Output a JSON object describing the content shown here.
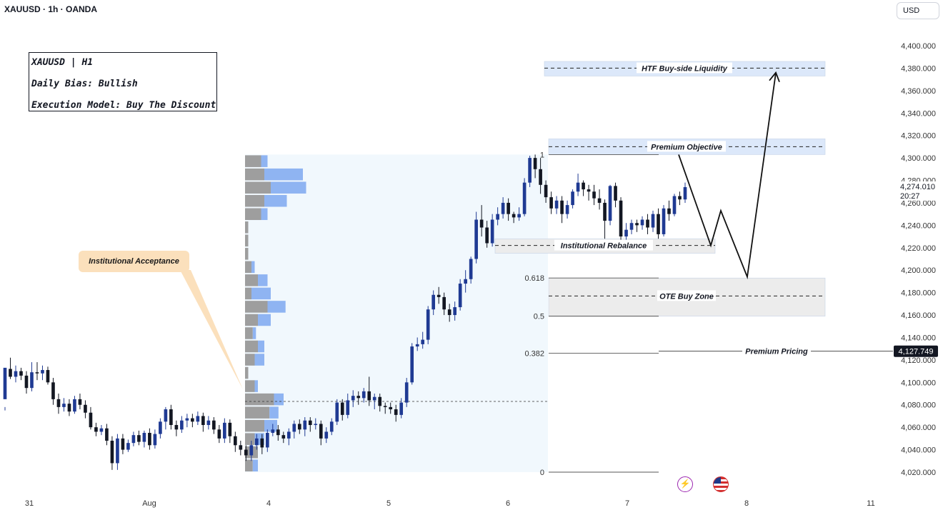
{
  "header": {
    "symbol_line": "XAUUSD · 1h · OANDA",
    "currency": "USD"
  },
  "info_box": {
    "line1": "XAUUSD | H1",
    "line2": "Daily Bias: Bullish",
    "line3": "Execution Model: Buy The Discount"
  },
  "callout": {
    "label": "Institutional Acceptance"
  },
  "events": {
    "icon1": "lightning-icon",
    "icon2": "us-flag-icon"
  },
  "colors": {
    "bull": "#1f3a93",
    "bear": "#131722",
    "zone_blue": "#dce8fa",
    "zone_gray": "#ececec",
    "profile_light": "#f1f8fd",
    "vol_gray": "#9e9e9e",
    "vol_blue": "#8fb4f2",
    "callout": "#fbe0bc"
  },
  "chart_data": {
    "type": "candlestick",
    "title": "XAUUSD · 1h · OANDA",
    "y_axis": {
      "ticks": [
        "4,020.000",
        "4,040.000",
        "4,060.000",
        "4,080.000",
        "4,100.000",
        "4,120.000",
        "4,140.000",
        "4,160.000",
        "4,180.000",
        "4,200.000",
        "4,220.000",
        "4,240.000",
        "4,260.000",
        "4,280.000",
        "4,300.000",
        "4,320.000",
        "4,340.000",
        "4,360.000",
        "4,380.000",
        "4,400.000"
      ],
      "ylim": [
        4020,
        4400
      ],
      "current_price": "4,274.010",
      "countdown": "20:27",
      "premium_pricing_price": "4,127.749"
    },
    "x_axis": {
      "labels": [
        "31",
        "Aug",
        "4",
        "5",
        "6",
        "7",
        "8",
        "11"
      ]
    },
    "candles": [
      [
        4085,
        4113,
        4078,
        4075,
        4115
      ],
      [
        4112,
        4105,
        4103,
        4122
      ],
      [
        4105,
        4110,
        4100,
        4115
      ],
      [
        4110,
        4106,
        4102,
        4113
      ],
      [
        4106,
        4095,
        4090,
        4110
      ],
      [
        4095,
        4109,
        4092,
        4118
      ],
      [
        4109,
        4108,
        4102,
        4118
      ],
      [
        4108,
        4111,
        4102,
        4115
      ],
      [
        4111,
        4100,
        4098,
        4114
      ],
      [
        4100,
        4085,
        4080,
        4104
      ],
      [
        4085,
        4078,
        4072,
        4090
      ],
      [
        4078,
        4081,
        4074,
        4086
      ],
      [
        4081,
        4074,
        4070,
        4085
      ],
      [
        4074,
        4085,
        4072,
        4088
      ],
      [
        4085,
        4080,
        4076,
        4090
      ],
      [
        4080,
        4073,
        4068,
        4084
      ],
      [
        4073,
        4060,
        4058,
        4078
      ],
      [
        4060,
        4056,
        4052,
        4064
      ],
      [
        4056,
        4059,
        4053,
        4062
      ],
      [
        4059,
        4048,
        4044,
        4063
      ],
      [
        4048,
        4028,
        4022,
        4052
      ],
      [
        4028,
        4050,
        4022,
        4054
      ],
      [
        4050,
        4040,
        4036,
        4054
      ],
      [
        4040,
        4046,
        4038,
        4049
      ],
      [
        4046,
        4053,
        4043,
        4056
      ],
      [
        4053,
        4047,
        4044,
        4057
      ],
      [
        4047,
        4055,
        4042,
        4057
      ],
      [
        4055,
        4044,
        4040,
        4059
      ],
      [
        4044,
        4054,
        4041,
        4058
      ],
      [
        4054,
        4065,
        4050,
        4068
      ],
      [
        4065,
        4076,
        4058,
        4078
      ],
      [
        4076,
        4062,
        4058,
        4080
      ],
      [
        4062,
        4058,
        4052,
        4066
      ],
      [
        4058,
        4066,
        4055,
        4070
      ],
      [
        4066,
        4068,
        4060,
        4072
      ],
      [
        4068,
        4065,
        4060,
        4072
      ],
      [
        4065,
        4070,
        4062,
        4074
      ],
      [
        4070,
        4062,
        4056,
        4073
      ],
      [
        4062,
        4066,
        4058,
        4070
      ],
      [
        4066,
        4058,
        4054,
        4069
      ],
      [
        4058,
        4050,
        4046,
        4062
      ],
      [
        4050,
        4064,
        4046,
        4068
      ],
      [
        4064,
        4052,
        4046,
        4067
      ],
      [
        4052,
        4044,
        4038,
        4056
      ],
      [
        4044,
        4040,
        4035,
        4048
      ],
      [
        4040,
        4035,
        4030,
        4044
      ],
      [
        4035,
        4044,
        4030,
        4048
      ],
      [
        4044,
        4050,
        4040,
        4054
      ],
      [
        4050,
        4042,
        4036,
        4054
      ],
      [
        4042,
        4055,
        4038,
        4058
      ],
      [
        4055,
        4058,
        4052,
        4063
      ],
      [
        4058,
        4053,
        4048,
        4062
      ],
      [
        4053,
        4050,
        4046,
        4056
      ],
      [
        4050,
        4056,
        4044,
        4059
      ],
      [
        4056,
        4063,
        4050,
        4066
      ],
      [
        4063,
        4058,
        4054,
        4067
      ],
      [
        4058,
        4066,
        4052,
        4069
      ],
      [
        4066,
        4062,
        4056,
        4069
      ],
      [
        4062,
        4063,
        4058,
        4068
      ],
      [
        4063,
        4050,
        4044,
        4066
      ],
      [
        4050,
        4056,
        4046,
        4060
      ],
      [
        4056,
        4065,
        4053,
        4068
      ],
      [
        4065,
        4082,
        4062,
        4085
      ],
      [
        4082,
        4071,
        4066,
        4085
      ],
      [
        4071,
        4084,
        4068,
        4090
      ],
      [
        4084,
        4088,
        4078,
        4093
      ],
      [
        4088,
        4086,
        4080,
        4092
      ],
      [
        4086,
        4092,
        4082,
        4095
      ],
      [
        4092,
        4084,
        4079,
        4105
      ],
      [
        4084,
        4087,
        4076,
        4090
      ],
      [
        4087,
        4079,
        4074,
        4090
      ],
      [
        4079,
        4078,
        4072,
        4082
      ],
      [
        4078,
        4076,
        4072,
        4082
      ],
      [
        4076,
        4071,
        4065,
        4080
      ],
      [
        4071,
        4082,
        4068,
        4086
      ],
      [
        4082,
        4100,
        4078,
        4104
      ],
      [
        4100,
        4132,
        4098,
        4135
      ],
      [
        4132,
        4134,
        4128,
        4140
      ],
      [
        4134,
        4138,
        4130,
        4145
      ],
      [
        4138,
        4165,
        4134,
        4168
      ],
      [
        4165,
        4178,
        4160,
        4182
      ],
      [
        4178,
        4176,
        4170,
        4185
      ],
      [
        4176,
        4165,
        4160,
        4180
      ],
      [
        4165,
        4160,
        4154,
        4170
      ],
      [
        4160,
        4167,
        4155,
        4172
      ],
      [
        4167,
        4188,
        4164,
        4192
      ],
      [
        4188,
        4192,
        4180,
        4200
      ],
      [
        4192,
        4210,
        4188,
        4212
      ],
      [
        4210,
        4245,
        4206,
        4252
      ],
      [
        4245,
        4238,
        4230,
        4258
      ],
      [
        4238,
        4224,
        4220,
        4244
      ],
      [
        4224,
        4245,
        4221,
        4250
      ],
      [
        4245,
        4250,
        4240,
        4256
      ],
      [
        4250,
        4260,
        4246,
        4265
      ],
      [
        4260,
        4250,
        4244,
        4264
      ],
      [
        4250,
        4247,
        4242,
        4252
      ],
      [
        4247,
        4250,
        4244,
        4256
      ],
      [
        4250,
        4278,
        4248,
        4282
      ],
      [
        4278,
        4300,
        4274,
        4302
      ],
      [
        4300,
        4290,
        4282,
        4303
      ],
      [
        4290,
        4276,
        4268,
        4300
      ],
      [
        4276,
        4265,
        4260,
        4280
      ],
      [
        4265,
        4255,
        4250,
        4270
      ],
      [
        4255,
        4262,
        4250,
        4266
      ],
      [
        4262,
        4250,
        4242,
        4266
      ],
      [
        4250,
        4258,
        4246,
        4262
      ],
      [
        4258,
        4270,
        4255,
        4272
      ],
      [
        4270,
        4278,
        4266,
        4286
      ],
      [
        4278,
        4272,
        4266,
        4280
      ],
      [
        4272,
        4270,
        4262,
        4276
      ],
      [
        4270,
        4264,
        4258,
        4276
      ],
      [
        4264,
        4260,
        4254,
        4272
      ],
      [
        4260,
        4244,
        4228,
        4263
      ],
      [
        4244,
        4275,
        4240,
        4276
      ],
      [
        4275,
        4262,
        4256,
        4278
      ],
      [
        4262,
        4230,
        4222,
        4265
      ],
      [
        4230,
        4236,
        4226,
        4242
      ],
      [
        4236,
        4242,
        4232,
        4245
      ],
      [
        4242,
        4240,
        4234,
        4245
      ],
      [
        4240,
        4245,
        4236,
        4248
      ],
      [
        4245,
        4238,
        4232,
        4250
      ],
      [
        4238,
        4250,
        4234,
        4253
      ],
      [
        4250,
        4232,
        4228,
        4255
      ],
      [
        4232,
        4255,
        4230,
        4258
      ],
      [
        4255,
        4250,
        4244,
        4262
      ],
      [
        4250,
        4266,
        4248,
        4268
      ],
      [
        4266,
        4263,
        4258,
        4270
      ],
      [
        4263,
        4274,
        4260,
        4278
      ]
    ],
    "volume_profile": {
      "price_range": [
        4020,
        4303
      ],
      "rows": [
        {
          "gray": 0.25,
          "blue": 0.1
        },
        {
          "gray": 0.3,
          "blue": 0.6
        },
        {
          "gray": 0.4,
          "blue": 0.55
        },
        {
          "gray": 0.3,
          "blue": 0.35
        },
        {
          "gray": 0.25,
          "blue": 0.1
        },
        {
          "gray": 0.05,
          "blue": 0.0
        },
        {
          "gray": 0.05,
          "blue": 0.0
        },
        {
          "gray": 0.05,
          "blue": 0.0
        },
        {
          "gray": 0.1,
          "blue": 0.05
        },
        {
          "gray": 0.2,
          "blue": 0.15
        },
        {
          "gray": 0.1,
          "blue": 0.3
        },
        {
          "gray": 0.35,
          "blue": 0.28
        },
        {
          "gray": 0.2,
          "blue": 0.2
        },
        {
          "gray": 0.12,
          "blue": 0.05
        },
        {
          "gray": 0.2,
          "blue": 0.1
        },
        {
          "gray": 0.15,
          "blue": 0.15
        },
        {
          "gray": 0.05,
          "blue": 0.0
        },
        {
          "gray": 0.15,
          "blue": 0.05
        },
        {
          "gray": 0.45,
          "blue": 0.15
        },
        {
          "gray": 0.38,
          "blue": 0.14
        },
        {
          "gray": 0.3,
          "blue": 0.2
        },
        {
          "gray": 0.15,
          "blue": 0.15
        },
        {
          "gray": 0.2,
          "blue": 0.0
        },
        {
          "gray": 0.12,
          "blue": 0.08
        }
      ]
    },
    "poc_price": 4083,
    "annotations": {
      "htf_liquidity": {
        "label": "HTF Buy-side Liquidity",
        "price": 4380,
        "zone": [
          4373,
          4386
        ]
      },
      "premium_objective": {
        "label": "Premium Objective",
        "price": 4310,
        "zone": [
          4303,
          4317
        ]
      },
      "institutional_rebalance": {
        "label": "Institutional Rebalance",
        "price": 4222,
        "zone": [
          4215,
          4228
        ]
      },
      "ote_buy_zone": {
        "label": "OTE Buy Zone",
        "price": 4177,
        "zone": [
          4159,
          4193
        ]
      },
      "premium_pricing": {
        "label": "Premium Pricing",
        "price": 4127.749
      }
    },
    "fib_levels": [
      {
        "label": "1",
        "price": 4303
      },
      {
        "label": "0.618",
        "price": 4193
      },
      {
        "label": "0.5",
        "price": 4159
      },
      {
        "label": "0.382",
        "price": 4126
      },
      {
        "label": "0",
        "price": 4020
      }
    ],
    "projection_path_prices": [
      4303,
      4222,
      4253,
      4194,
      4376
    ]
  }
}
